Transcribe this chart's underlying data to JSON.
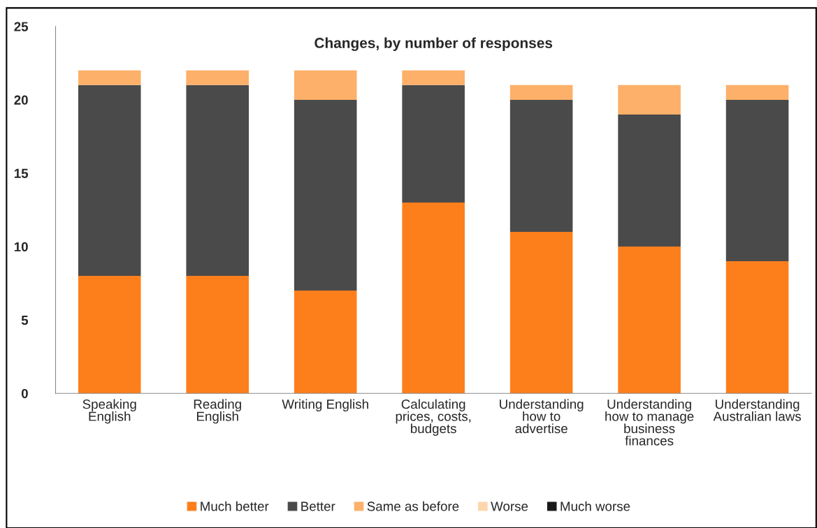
{
  "chart_data": {
    "type": "bar",
    "title": "Changes, by number of responses",
    "stacked": true,
    "categories": [
      "Speaking\nEnglish",
      "Reading\nEnglish",
      "Writing English",
      "Calculating\nprices, costs,\nbudgets",
      "Understanding\nhow to\nadvertise",
      "Understanding\nhow to manage\nbusiness\nfinances",
      "Understanding\nAustralian laws"
    ],
    "series": [
      {
        "name": "Much better",
        "color": "#fd7f1c",
        "values": [
          8,
          8,
          7,
          13,
          11,
          10,
          9
        ]
      },
      {
        "name": "Better",
        "color": "#4a4a4a",
        "values": [
          13,
          13,
          13,
          8,
          9,
          9,
          11
        ]
      },
      {
        "name": "Same as before",
        "color": "#fdb069",
        "values": [
          1,
          1,
          2,
          1,
          1,
          2,
          1
        ]
      },
      {
        "name": "Worse",
        "color": "#fdd6ac",
        "values": [
          0,
          0,
          0,
          0,
          0,
          0,
          0
        ]
      },
      {
        "name": "Much worse",
        "color": "#1a1a1a",
        "values": [
          0,
          0,
          0,
          0,
          0,
          0,
          0
        ]
      }
    ],
    "ylim": [
      0,
      25
    ],
    "yticks": [
      0,
      5,
      10,
      15,
      20,
      25
    ],
    "grid": false,
    "legend": "bottom"
  }
}
